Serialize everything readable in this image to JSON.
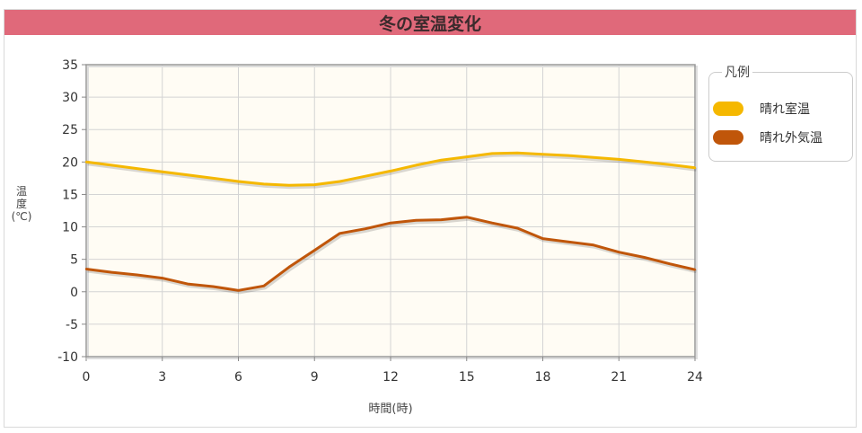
{
  "chart_data": {
    "type": "line",
    "title": "冬の室温変化",
    "xlabel": "時間(時)",
    "ylabel_lines": [
      "温",
      "度",
      "(℃)"
    ],
    "x": [
      0,
      1,
      2,
      3,
      4,
      5,
      6,
      7,
      8,
      9,
      10,
      11,
      12,
      13,
      14,
      15,
      16,
      17,
      18,
      19,
      20,
      21,
      22,
      23,
      24
    ],
    "xticks": [
      0,
      3,
      6,
      9,
      12,
      15,
      18,
      21,
      24
    ],
    "yticks": [
      -10,
      -5,
      0,
      5,
      10,
      15,
      20,
      25,
      30,
      35
    ],
    "xlim": [
      0,
      24
    ],
    "ylim": [
      -10,
      35
    ],
    "grid": true,
    "legend_title": "凡例",
    "legend_position": "right",
    "series": [
      {
        "name": "晴れ室温",
        "color": "#f5b800",
        "values": [
          20.0,
          19.5,
          19.0,
          18.5,
          18.0,
          17.5,
          17.0,
          16.6,
          16.4,
          16.5,
          17.0,
          17.8,
          18.6,
          19.5,
          20.3,
          20.8,
          21.3,
          21.4,
          21.2,
          21.0,
          20.7,
          20.4,
          20.0,
          19.6,
          19.1
        ]
      },
      {
        "name": "晴れ外気温",
        "color": "#c0560a",
        "values": [
          3.5,
          3.0,
          2.6,
          2.1,
          1.2,
          0.8,
          0.2,
          0.9,
          3.8,
          6.4,
          9.0,
          9.7,
          10.6,
          11.0,
          11.1,
          11.5,
          10.6,
          9.8,
          8.2,
          7.7,
          7.2,
          6.1,
          5.3,
          4.3,
          3.4
        ]
      }
    ]
  }
}
